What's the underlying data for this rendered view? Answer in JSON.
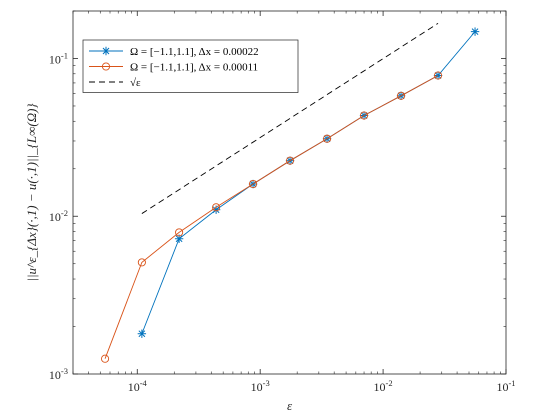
{
  "chart_data": {
    "type": "line",
    "xscale": "log",
    "yscale": "log",
    "xlim": [
      3e-05,
      0.1
    ],
    "ylim": [
      0.001,
      0.2
    ],
    "xlabel": "ε",
    "ylabel": "||u^ε_{Δx}(·,1) − u(·,1)||_{L∞(Ω)}",
    "x_ticks": [
      {
        "value": 0.0001,
        "base": "10",
        "exp": "-4"
      },
      {
        "value": 0.001,
        "base": "10",
        "exp": "-3"
      },
      {
        "value": 0.01,
        "base": "10",
        "exp": "-2"
      },
      {
        "value": 0.1,
        "base": "10",
        "exp": "-1"
      }
    ],
    "y_ticks": [
      {
        "value": 0.001,
        "base": "10",
        "exp": "-3"
      },
      {
        "value": 0.01,
        "base": "10",
        "exp": "-2"
      },
      {
        "value": 0.1,
        "base": "10",
        "exp": "-1"
      }
    ],
    "legend_position": "top-left",
    "grid": false,
    "series": [
      {
        "name": "Ω = [−1.1,1.1],  Δx = 0.00022",
        "color": "#0072BD",
        "marker": "asterisk",
        "line": "solid",
        "x": [
          0.000109,
          0.000219,
          0.000438,
          0.000875,
          0.00175,
          0.0035,
          0.007,
          0.014,
          0.028,
          0.056
        ],
        "y": [
          0.0018,
          0.0072,
          0.011,
          0.016,
          0.0225,
          0.031,
          0.0435,
          0.058,
          0.078,
          0.148
        ]
      },
      {
        "name": "Ω = [−1.1,1.1],  Δx = 0.00011",
        "color": "#D95319",
        "marker": "circle",
        "line": "solid",
        "x": [
          5.47e-05,
          0.000109,
          0.000219,
          0.000438,
          0.000875,
          0.00175,
          0.0035,
          0.007,
          0.014,
          0.028
        ],
        "y": [
          0.00125,
          0.0051,
          0.0079,
          0.0114,
          0.016,
          0.0225,
          0.031,
          0.0435,
          0.058,
          0.078
        ]
      },
      {
        "name": "√ε",
        "color": "#000000",
        "marker": "none",
        "line": "dashed",
        "x": [
          0.000109,
          0.028
        ],
        "y": [
          0.0104,
          0.167
        ]
      }
    ]
  }
}
